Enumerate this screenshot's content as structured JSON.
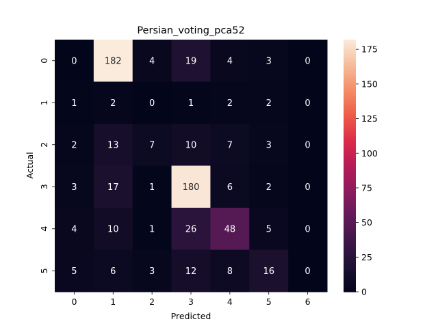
{
  "chart_data": {
    "type": "heatmap",
    "title": "Persian_voting_pca52",
    "xlabel": "Predicted",
    "ylabel": "Actual",
    "x_categories": [
      "0",
      "1",
      "2",
      "3",
      "4",
      "5",
      "6"
    ],
    "y_categories": [
      "0",
      "1",
      "2",
      "3",
      "4",
      "5"
    ],
    "values": [
      [
        0,
        182,
        4,
        19,
        4,
        3,
        0
      ],
      [
        1,
        2,
        0,
        1,
        2,
        2,
        0
      ],
      [
        2,
        13,
        7,
        10,
        7,
        3,
        0
      ],
      [
        3,
        17,
        1,
        180,
        6,
        2,
        0
      ],
      [
        4,
        10,
        1,
        26,
        48,
        5,
        0
      ],
      [
        5,
        6,
        3,
        12,
        8,
        16,
        0
      ]
    ],
    "colorbar": {
      "range": [
        0,
        182
      ],
      "ticks": [
        0,
        25,
        50,
        75,
        100,
        125,
        150,
        175
      ],
      "colormap": "rocket"
    }
  }
}
